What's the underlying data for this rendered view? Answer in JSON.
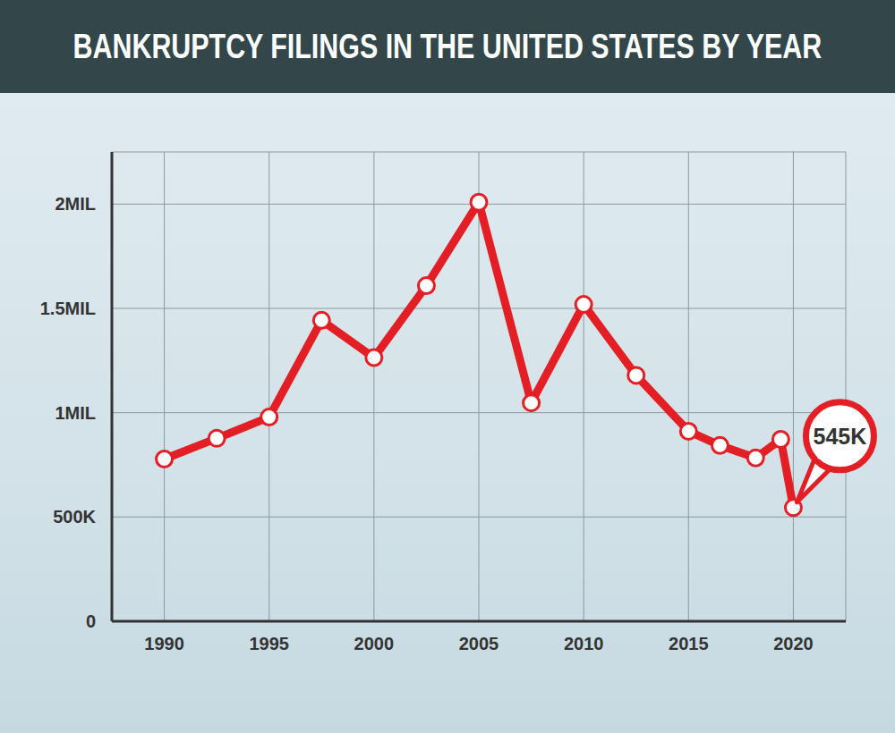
{
  "chart_data": {
    "type": "line",
    "title": "BANKRUPTCY FILINGS IN THE UNITED STATES BY YEAR",
    "x": [
      1990,
      1992.5,
      1995,
      1997.5,
      2000,
      2002.5,
      2005,
      2007.5,
      2010,
      2012.5,
      2015,
      2016.5,
      2018.2,
      2019.4,
      2020
    ],
    "values": [
      778000,
      877000,
      979000,
      1443000,
      1264000,
      1609000,
      2009000,
      1047000,
      1519000,
      1179000,
      911000,
      843000,
      783000,
      872000,
      545000
    ],
    "color": "#e31e24",
    "marker": "circle",
    "xlim": [
      1987.5,
      2022.5
    ],
    "xticks": [
      1990,
      1995,
      2000,
      2005,
      2010,
      2015,
      2020
    ],
    "ylim": [
      0,
      2250000
    ],
    "yticks": [
      0,
      {
        "value": 500000,
        "label": "500K"
      },
      {
        "value": 1000000,
        "label": "1MIL"
      },
      {
        "value": 1500000,
        "label": "1.5MIL"
      },
      {
        "value": 2000000,
        "label": "2MIL"
      }
    ],
    "grid": true,
    "annotations": [
      {
        "text": "545K",
        "x": 2020,
        "y": 545000
      }
    ]
  }
}
